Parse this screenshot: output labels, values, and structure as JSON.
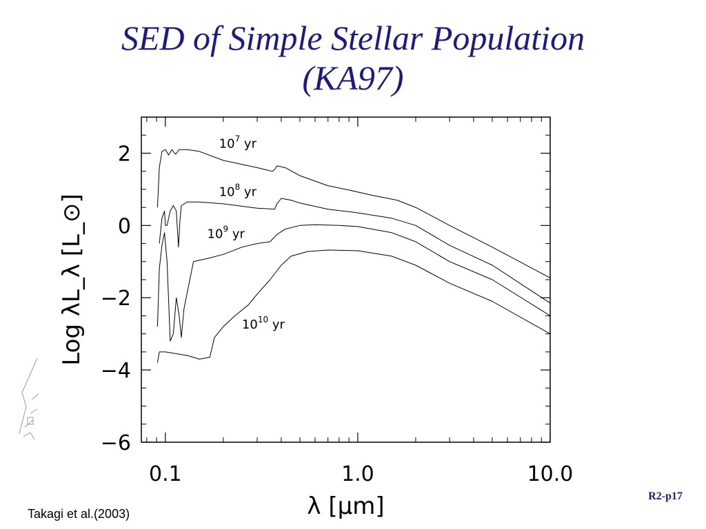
{
  "slide": {
    "title_line1": "SED of Simple Stellar Population",
    "title_line2": "(KA97)",
    "credit": "Takagi et al.(2003)",
    "page_ref": "R2-p17",
    "title_color": "#1a1a8c"
  },
  "chart_data": {
    "type": "line",
    "title": "",
    "xlabel": "λ [μm]",
    "ylabel": "Log λL_λ [L_⊙]",
    "xscale": "log",
    "xlim": [
      0.075,
      10.0
    ],
    "ylim": [
      -6,
      3
    ],
    "xticks": [
      {
        "value": 0.1,
        "label": "0.1"
      },
      {
        "value": 1.0,
        "label": "1.0"
      },
      {
        "value": 10.0,
        "label": "10.0"
      }
    ],
    "yticks": [
      {
        "value": 2,
        "label": "2"
      },
      {
        "value": 0,
        "label": "0"
      },
      {
        "value": -2,
        "label": "−2"
      },
      {
        "value": -4,
        "label": "−4"
      },
      {
        "value": -6,
        "label": "−6"
      }
    ],
    "grid": false,
    "line_color": "#000000",
    "series": [
      {
        "label": "10",
        "label_exp": "7",
        "label_unit": "yr",
        "label_at": [
          0.19,
          2.15
        ],
        "points": [
          [
            0.091,
            0.5
          ],
          [
            0.093,
            1.6
          ],
          [
            0.096,
            2.05
          ],
          [
            0.1,
            2.1
          ],
          [
            0.104,
            1.95
          ],
          [
            0.108,
            2.1
          ],
          [
            0.113,
            1.97
          ],
          [
            0.118,
            2.1
          ],
          [
            0.13,
            2.1
          ],
          [
            0.15,
            2.05
          ],
          [
            0.2,
            1.8
          ],
          [
            0.3,
            1.6
          ],
          [
            0.36,
            1.5
          ],
          [
            0.37,
            1.55
          ],
          [
            0.38,
            1.65
          ],
          [
            0.42,
            1.6
          ],
          [
            0.5,
            1.38
          ],
          [
            0.7,
            1.1
          ],
          [
            0.9,
            0.98
          ],
          [
            1.2,
            0.83
          ],
          [
            1.6,
            0.7
          ],
          [
            2.0,
            0.5
          ],
          [
            3.0,
            0.0
          ],
          [
            5.0,
            -0.6
          ],
          [
            10.0,
            -1.45
          ]
        ]
      },
      {
        "label": "10",
        "label_exp": "8",
        "label_unit": "yr",
        "label_at": [
          0.19,
          0.82
        ],
        "points": [
          [
            0.093,
            -0.5
          ],
          [
            0.096,
            0.2
          ],
          [
            0.099,
            0.4
          ],
          [
            0.1,
            0.0
          ],
          [
            0.102,
            0.0
          ],
          [
            0.106,
            0.4
          ],
          [
            0.11,
            0.55
          ],
          [
            0.114,
            0.4
          ],
          [
            0.117,
            -0.6
          ],
          [
            0.119,
            0.1
          ],
          [
            0.121,
            0.55
          ],
          [
            0.13,
            0.65
          ],
          [
            0.15,
            0.65
          ],
          [
            0.2,
            0.6
          ],
          [
            0.3,
            0.48
          ],
          [
            0.37,
            0.45
          ],
          [
            0.38,
            0.6
          ],
          [
            0.4,
            0.75
          ],
          [
            0.45,
            0.7
          ],
          [
            0.5,
            0.62
          ],
          [
            0.7,
            0.45
          ],
          [
            1.0,
            0.35
          ],
          [
            1.5,
            0.2
          ],
          [
            2.0,
            0.0
          ],
          [
            3.0,
            -0.55
          ],
          [
            5.0,
            -1.1
          ],
          [
            10.0,
            -2.15
          ]
        ]
      },
      {
        "label": "10",
        "label_exp": "9",
        "label_unit": "yr",
        "label_at": [
          0.165,
          -0.35
        ],
        "points": [
          [
            0.091,
            -2.8
          ],
          [
            0.093,
            -1.2
          ],
          [
            0.096,
            -0.55
          ],
          [
            0.099,
            -0.2
          ],
          [
            0.102,
            -1.0
          ],
          [
            0.106,
            -3.2
          ],
          [
            0.11,
            -3.0
          ],
          [
            0.114,
            -2.0
          ],
          [
            0.118,
            -2.5
          ],
          [
            0.121,
            -3.1
          ],
          [
            0.125,
            -2.3
          ],
          [
            0.14,
            -1.0
          ],
          [
            0.17,
            -0.9
          ],
          [
            0.2,
            -0.8
          ],
          [
            0.25,
            -0.6
          ],
          [
            0.3,
            -0.5
          ],
          [
            0.35,
            -0.45
          ],
          [
            0.38,
            -0.25
          ],
          [
            0.42,
            -0.1
          ],
          [
            0.5,
            0.0
          ],
          [
            0.6,
            0.02
          ],
          [
            0.8,
            0.0
          ],
          [
            1.0,
            -0.03
          ],
          [
            1.5,
            -0.2
          ],
          [
            2.0,
            -0.45
          ],
          [
            3.0,
            -1.0
          ],
          [
            5.0,
            -1.5
          ],
          [
            10.0,
            -2.5
          ]
        ]
      },
      {
        "label": "10",
        "label_exp": "10",
        "label_unit": "yr",
        "label_at": [
          0.25,
          -2.85
        ],
        "points": [
          [
            0.091,
            -3.8
          ],
          [
            0.093,
            -3.5
          ],
          [
            0.1,
            -3.5
          ],
          [
            0.13,
            -3.6
          ],
          [
            0.15,
            -3.7
          ],
          [
            0.17,
            -3.65
          ],
          [
            0.18,
            -3.1
          ],
          [
            0.2,
            -2.8
          ],
          [
            0.23,
            -2.5
          ],
          [
            0.27,
            -2.2
          ],
          [
            0.3,
            -1.9
          ],
          [
            0.35,
            -1.5
          ],
          [
            0.4,
            -1.1
          ],
          [
            0.45,
            -0.85
          ],
          [
            0.55,
            -0.72
          ],
          [
            0.7,
            -0.68
          ],
          [
            1.0,
            -0.7
          ],
          [
            1.5,
            -0.85
          ],
          [
            2.0,
            -1.1
          ],
          [
            3.0,
            -1.6
          ],
          [
            5.0,
            -2.1
          ],
          [
            10.0,
            -3.0
          ]
        ]
      }
    ]
  }
}
